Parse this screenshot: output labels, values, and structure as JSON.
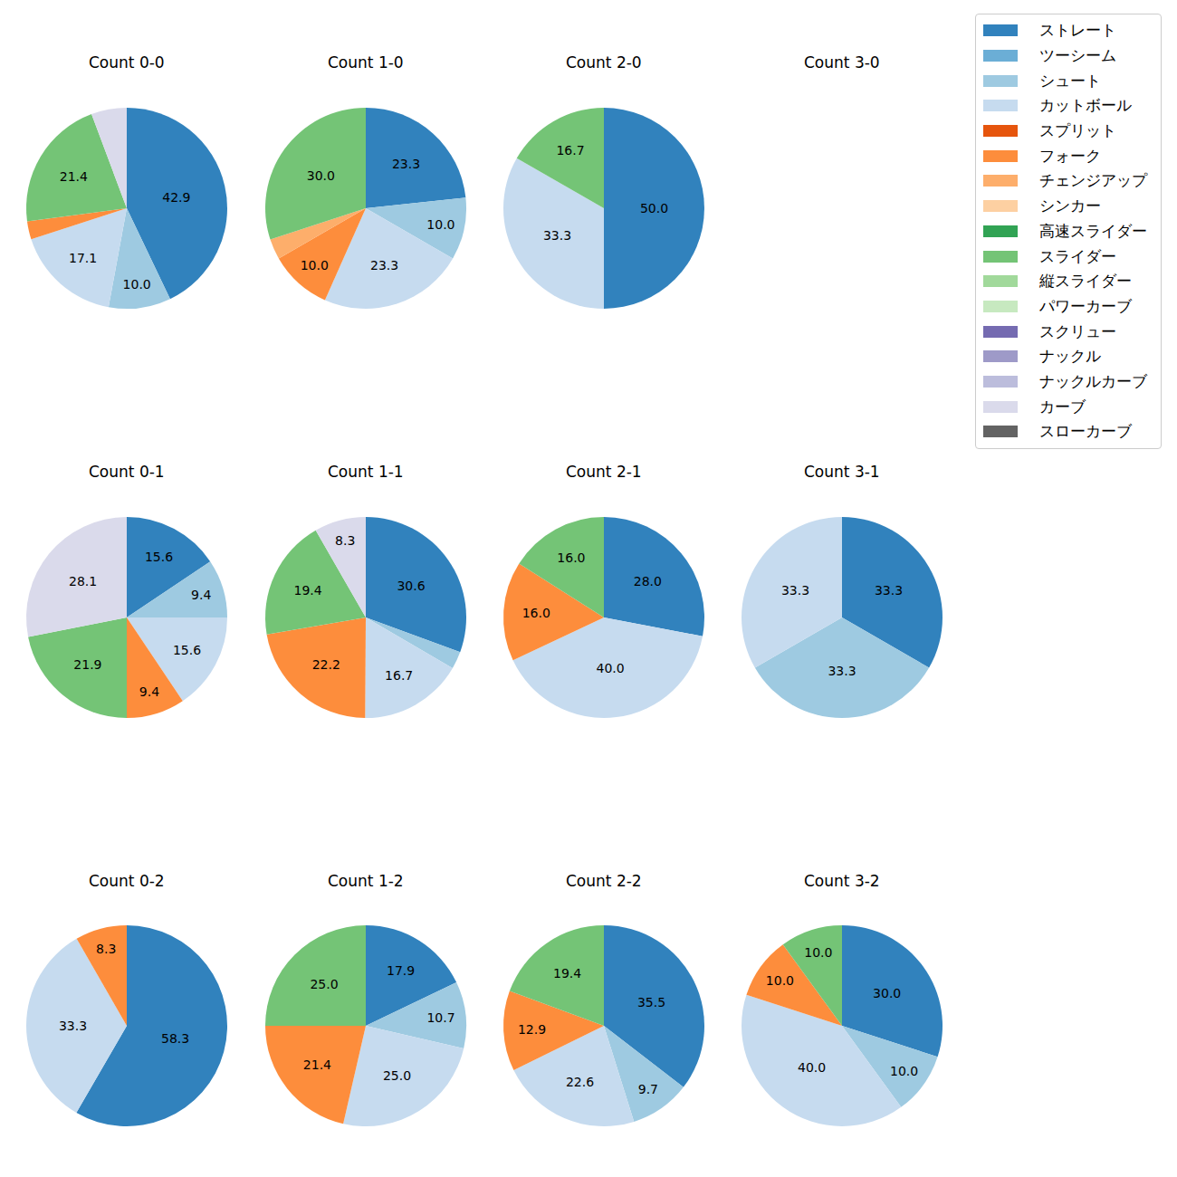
{
  "chart_data": {
    "type": "pie",
    "legend": "upper right",
    "data_labels": true,
    "categories": [
      "ストレート",
      "ツーシーム",
      "シュート",
      "カットボール",
      "スプリット",
      "フォーク",
      "チェンジアップ",
      "シンカー",
      "高速スライダー",
      "スライダー",
      "縦スライダー",
      "パワーカーブ",
      "スクリュー",
      "ナックル",
      "ナックルカーブ",
      "カーブ",
      "スローカーブ"
    ],
    "colors": [
      "#3182bd",
      "#6baed6",
      "#9ecae1",
      "#c6dbef",
      "#e6550d",
      "#fd8d3c",
      "#fdae6b",
      "#fdd0a2",
      "#31a354",
      "#74c476",
      "#a1d99b",
      "#c7e9c0",
      "#756bb1",
      "#9e9ac8",
      "#bcbddc",
      "#dadaeb",
      "#636363"
    ],
    "charts": [
      {
        "title": "Count 0-0",
        "categories": [
          "ストレート",
          "シュート",
          "カットボール",
          "フォーク",
          "スライダー",
          "カーブ"
        ],
        "values": [
          42.9,
          10.0,
          17.1,
          2.9,
          21.4,
          5.7
        ],
        "value_labels": [
          "42.9",
          "10.0",
          "17.1",
          null,
          "21.4",
          null
        ]
      },
      {
        "title": "Count 1-0",
        "categories": [
          "ストレート",
          "シュート",
          "カットボール",
          "フォーク",
          "チェンジアップ",
          "スライダー"
        ],
        "values": [
          23.3,
          10.0,
          23.3,
          10.0,
          3.3,
          30.0
        ],
        "value_labels": [
          "23.3",
          "10.0",
          "23.3",
          "10.0",
          null,
          "30.0"
        ]
      },
      {
        "title": "Count 2-0",
        "categories": [
          "ストレート",
          "カットボール",
          "スライダー"
        ],
        "values": [
          50.0,
          33.3,
          16.7
        ],
        "value_labels": [
          "50.0",
          "33.3",
          "16.7"
        ]
      },
      {
        "title": "Count 3-0",
        "categories": [],
        "values": [],
        "value_labels": []
      },
      {
        "title": "Count 0-1",
        "categories": [
          "ストレート",
          "シュート",
          "カットボール",
          "フォーク",
          "スライダー",
          "カーブ"
        ],
        "values": [
          15.6,
          9.4,
          15.6,
          9.4,
          21.9,
          28.1
        ],
        "value_labels": [
          "15.6",
          "9.4",
          "15.6",
          "9.4",
          "21.9",
          "28.1"
        ]
      },
      {
        "title": "Count 1-1",
        "categories": [
          "ストレート",
          "シュート",
          "カットボール",
          "フォーク",
          "スライダー",
          "カーブ"
        ],
        "values": [
          30.6,
          2.8,
          16.7,
          22.2,
          19.4,
          8.3
        ],
        "value_labels": [
          "30.6",
          null,
          "16.7",
          "22.2",
          "19.4",
          "8.3"
        ]
      },
      {
        "title": "Count 2-1",
        "categories": [
          "ストレート",
          "カットボール",
          "フォーク",
          "スライダー"
        ],
        "values": [
          28.0,
          40.0,
          16.0,
          16.0
        ],
        "value_labels": [
          "28.0",
          "40.0",
          "16.0",
          "16.0"
        ]
      },
      {
        "title": "Count 3-1",
        "categories": [
          "ストレート",
          "シュート",
          "カットボール"
        ],
        "values": [
          33.3,
          33.3,
          33.3
        ],
        "value_labels": [
          "33.3",
          "33.3",
          "33.3"
        ]
      },
      {
        "title": "Count 0-2",
        "categories": [
          "ストレート",
          "カットボール",
          "フォーク"
        ],
        "values": [
          58.3,
          33.3,
          8.3
        ],
        "value_labels": [
          "58.3",
          "33.3",
          "8.3"
        ]
      },
      {
        "title": "Count 1-2",
        "categories": [
          "ストレート",
          "シュート",
          "カットボール",
          "フォーク",
          "スライダー"
        ],
        "values": [
          17.9,
          10.7,
          25.0,
          21.4,
          25.0
        ],
        "value_labels": [
          "17.9",
          "10.7",
          "25.0",
          "21.4",
          "25.0"
        ]
      },
      {
        "title": "Count 2-2",
        "categories": [
          "ストレート",
          "シュート",
          "カットボール",
          "フォーク",
          "スライダー"
        ],
        "values": [
          35.5,
          9.7,
          22.6,
          12.9,
          19.4
        ],
        "value_labels": [
          "35.5",
          "9.7",
          "22.6",
          "12.9",
          "19.4"
        ]
      },
      {
        "title": "Count 3-2",
        "categories": [
          "ストレート",
          "シュート",
          "カットボール",
          "フォーク",
          "スライダー"
        ],
        "values": [
          30.0,
          10.0,
          40.0,
          10.0,
          10.0
        ],
        "value_labels": [
          "30.0",
          "10.0",
          "40.0",
          "10.0",
          "10.0"
        ]
      }
    ]
  }
}
